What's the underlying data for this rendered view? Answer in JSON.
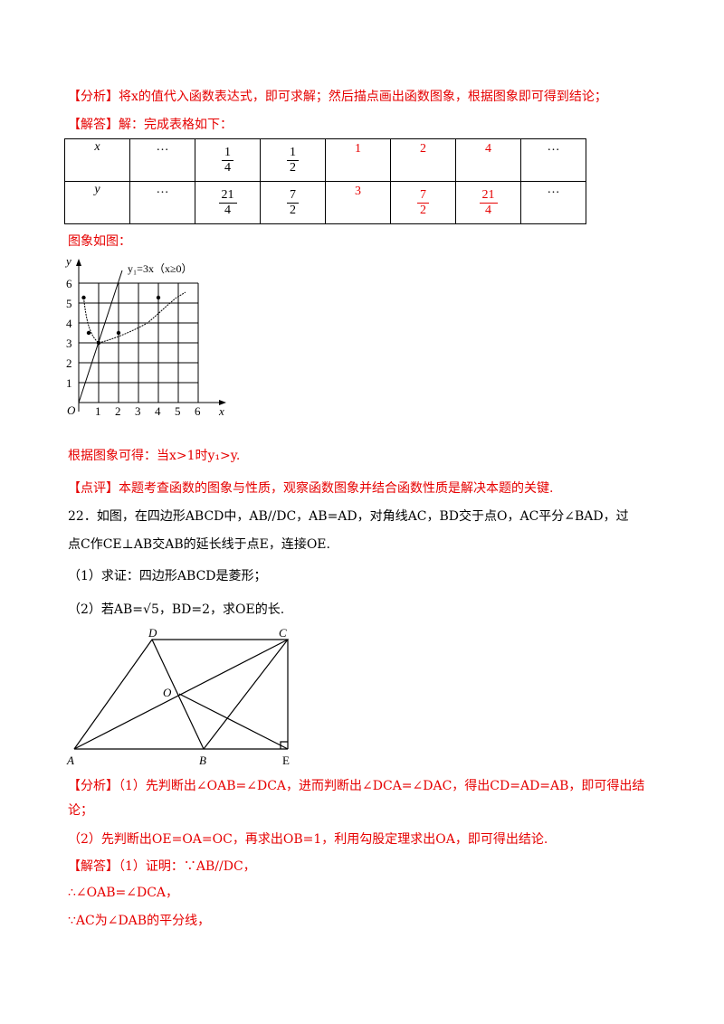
{
  "analysis1": {
    "tag": "【分析】",
    "text": "将x的值代入函数表达式，即可求解；然后描点画出函数图象，根据图象即可得到结论；"
  },
  "answer1": {
    "tag": "【解答】",
    "text": "解：完成表格如下："
  },
  "table": {
    "row_x": {
      "header": "x",
      "cells": [
        "…",
        "1/4",
        "1/2",
        "1",
        "2",
        "4",
        "…"
      ]
    },
    "row_y": {
      "header": "y",
      "cells": [
        "…",
        "21/4",
        "7/2",
        "3",
        "7/2",
        "21/4",
        "…"
      ]
    }
  },
  "graph_caption": "图象如图：",
  "graph": {
    "y_label": "y",
    "x_label": "x",
    "origin": "O",
    "x_ticks": [
      "1",
      "2",
      "3",
      "4",
      "5",
      "6"
    ],
    "y_ticks": [
      "1",
      "2",
      "3",
      "4",
      "5",
      "6"
    ],
    "line_label": "y₁=3x（x≥0）"
  },
  "conclusion": "根据图象可得：当x>1时y₁>y.",
  "comment": {
    "tag": "【点评】",
    "text": "本题考查函数的图象与性质，观察函数图象并结合函数性质是解决本题的关键."
  },
  "problem22": {
    "line1": "22．如图，在四边形ABCD中，AB//DC，AB=AD，对角线AC，BD交于点O，AC平分∠BAD，过",
    "line2": "点C作CE⊥AB交AB的延长线于点E，连接OE.",
    "q1": "（1）求证：四边形ABCD是菱形；",
    "q2": "（2）若AB=√5，BD=2，求OE的长."
  },
  "figure": {
    "labels": [
      "D",
      "C",
      "O",
      "A",
      "B",
      "E"
    ]
  },
  "analysis2": {
    "tag": "【分析】",
    "line1": "（1）先判断出∠OAB=∠DCA，进而判断出∠DCA=∠DAC，得出CD=AD=AB，即可得出结",
    "line2": "论；",
    "line3": "（2）先判断出OE=OA=OC，再求出OB=1，利用勾股定理求出OA，即可得出结论."
  },
  "answer2": {
    "tag": "【解答】",
    "line1": "（1）证明：∵AB//DC，",
    "line2": "∴∠OAB=∠DCA，",
    "line3": "∵AC为∠DAB的平分线，"
  },
  "colors": {
    "red": "#e60000",
    "black": "#000000"
  }
}
